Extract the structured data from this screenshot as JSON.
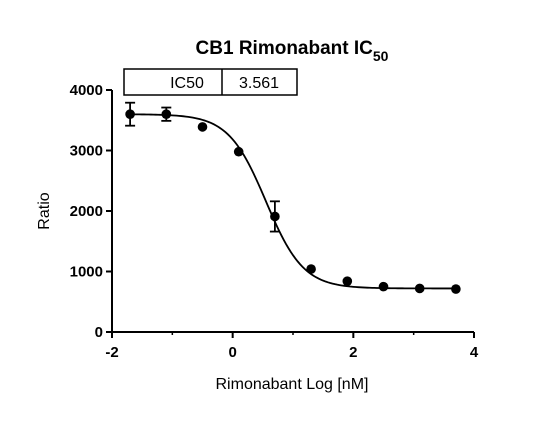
{
  "chart_data": {
    "type": "scatter",
    "title": "CB1 Rimonabant IC",
    "title_subscript": "50",
    "xlabel": "Rimonabant Log [nM]",
    "ylabel": "Ratio",
    "xlim": [
      -2,
      4
    ],
    "ylim": [
      0,
      4000
    ],
    "x_ticks": [
      "-2",
      "0",
      "2",
      "4"
    ],
    "y_ticks": [
      "0",
      "1000",
      "2000",
      "3000",
      "4000"
    ],
    "grid": false,
    "series": [
      {
        "x": [
          -1.7,
          -1.1,
          -0.5,
          0.1,
          0.7,
          1.3,
          1.9,
          2.5,
          3.1,
          3.7
        ],
        "y": [
          3600,
          3600,
          3390,
          2980,
          1910,
          1040,
          840,
          750,
          720,
          710
        ],
        "error": [
          190,
          110,
          0,
          0,
          250,
          0,
          0,
          0,
          0,
          0
        ]
      }
    ],
    "fit": {
      "type": "sigmoidal dose-response",
      "top": 3600,
      "bottom": 720
    },
    "table": {
      "label": "IC50",
      "value": "3.561"
    },
    "color": "#000000"
  }
}
